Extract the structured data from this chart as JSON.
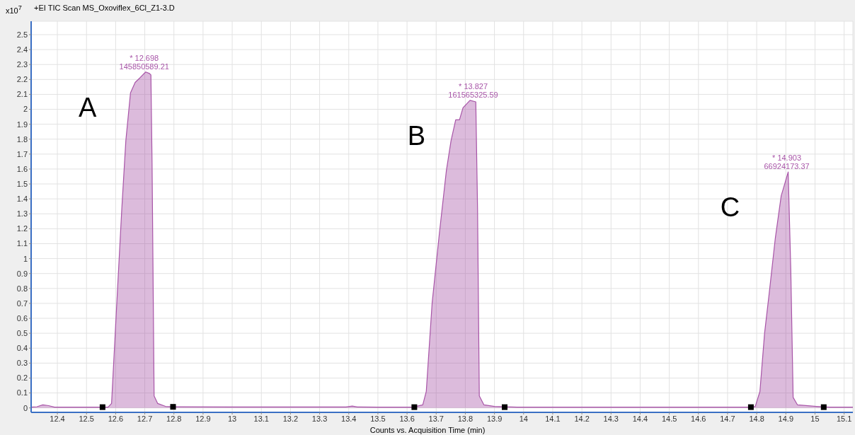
{
  "chart_data": {
    "type": "area",
    "title": "+EI TIC Scan MS_Oxoviflex_6Cl_Z1-3.D",
    "xlabel": "Counts vs. Acquisition Time (min)",
    "ylabel": "x10$^{7}$",
    "xlim": [
      12.31,
      15.13
    ],
    "ylim": [
      -0.03,
      2.59
    ],
    "xticks": [
      12.4,
      12.5,
      12.6,
      12.7,
      12.8,
      12.9,
      13,
      13.1,
      13.2,
      13.3,
      13.4,
      13.5,
      13.6,
      13.7,
      13.8,
      13.9,
      14,
      14.1,
      14.2,
      14.3,
      14.4,
      14.5,
      14.6,
      14.7,
      14.8,
      14.9,
      15,
      15.1
    ],
    "yticks": [
      0,
      0.1,
      0.2,
      0.3,
      0.4,
      0.5,
      0.6,
      0.7,
      0.8,
      0.9,
      1,
      1.1,
      1.2,
      1.3,
      1.4,
      1.5,
      1.6,
      1.7,
      1.8,
      1.9,
      2,
      2.1,
      2.2,
      2.3,
      2.4,
      2.5
    ],
    "grid": true,
    "series": [
      {
        "color": "#a855a8",
        "x": [
          12.31,
          12.33,
          12.35,
          12.37,
          12.39,
          12.45,
          12.55,
          12.574,
          12.586,
          12.602,
          12.621,
          12.635,
          12.651,
          12.667,
          12.683,
          12.703,
          12.716,
          12.721,
          12.725,
          12.732,
          12.744,
          12.771,
          12.8,
          13.0,
          13.2,
          13.39,
          13.412,
          13.43,
          13.5,
          13.62,
          13.654,
          13.666,
          13.686,
          13.711,
          13.735,
          13.751,
          13.767,
          13.78,
          13.792,
          13.816,
          13.836,
          13.842,
          13.848,
          13.864,
          13.9,
          13.978,
          14.2,
          14.5,
          14.78,
          14.795,
          14.811,
          14.827,
          14.843,
          14.864,
          14.884,
          14.896,
          14.908,
          14.917,
          14.925,
          14.94,
          15.005,
          15.05,
          15.13
        ],
        "values": [
          0.005,
          0.008,
          0.02,
          0.015,
          0.005,
          0.005,
          0.005,
          0.005,
          0.03,
          0.63,
          1.33,
          1.79,
          2.11,
          2.18,
          2.21,
          2.25,
          2.24,
          2.23,
          1.64,
          0.08,
          0.03,
          0.01,
          0.007,
          0.006,
          0.006,
          0.006,
          0.012,
          0.006,
          0.005,
          0.005,
          0.02,
          0.11,
          0.7,
          1.17,
          1.59,
          1.79,
          1.93,
          1.93,
          2.01,
          2.06,
          2.05,
          1.33,
          0.08,
          0.02,
          0.01,
          0.005,
          0.005,
          0.005,
          0.005,
          0.01,
          0.11,
          0.5,
          0.77,
          1.14,
          1.42,
          1.5,
          1.58,
          0.92,
          0.07,
          0.02,
          0.01,
          0.005,
          0.005
        ]
      },
      {
        "type": "scatter",
        "color": "#000000",
        "marker": "square",
        "x": [
          12.555,
          12.797,
          13.625,
          13.935,
          14.78,
          15.03
        ],
        "values": [
          0.005,
          0.007,
          0.005,
          0.005,
          0.005,
          0.005
        ]
      }
    ],
    "annotations": [
      {
        "text": "* 12.698\n145850589.21",
        "x": 12.698,
        "y": 2.25
      },
      {
        "text": "* 13.827\n161565325.59",
        "x": 13.827,
        "y": 2.06
      },
      {
        "text": "* 14.903\n66924173.37",
        "x": 14.903,
        "y": 1.58
      },
      "A",
      "B",
      "C"
    ]
  }
}
